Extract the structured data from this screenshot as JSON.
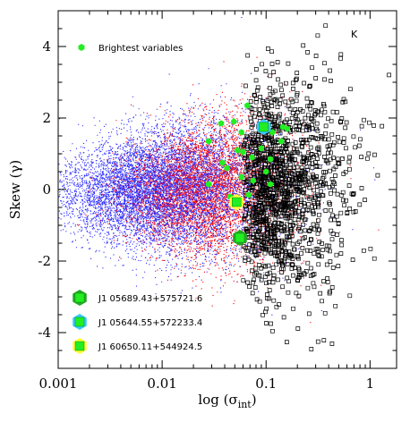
{
  "chart_data": {
    "type": "scatter",
    "panel_label": "K",
    "xlabel": "log (σ",
    "xlabel_sub": "int",
    "xlabel_close": ")",
    "ylabel": "Skew (γ)",
    "xscale": "log",
    "xlim": [
      0.001,
      1.8
    ],
    "ylim": [
      -5,
      5
    ],
    "x_ticks": [
      {
        "value": 0.001,
        "label": "0.001"
      },
      {
        "value": 0.01,
        "label": "0.01"
      },
      {
        "value": 0.1,
        "label": "0.1"
      },
      {
        "value": 1,
        "label": "1"
      }
    ],
    "y_ticks": [
      {
        "value": 4,
        "label": "4"
      },
      {
        "value": 2,
        "label": "2"
      },
      {
        "value": 0,
        "label": "0"
      },
      {
        "value": -2,
        "label": "-2"
      },
      {
        "value": -4,
        "label": "-4"
      }
    ],
    "legend": {
      "brightest_label": "Brightest variables"
    },
    "colors": {
      "blue_field": "#2a2aff",
      "red_field": "#ff0000",
      "black_squares": "#000000",
      "brightest": "#22ee22",
      "highlight_1_ring": "#22aa22",
      "highlight_2_ring": "#33ccff",
      "highlight_3_ring": "#ffff33"
    },
    "brightest_variables": [
      {
        "x": 0.066,
        "y": 2.35
      },
      {
        "x": 0.037,
        "y": 1.85
      },
      {
        "x": 0.049,
        "y": 1.9
      },
      {
        "x": 0.058,
        "y": 1.6
      },
      {
        "x": 0.115,
        "y": 1.6
      },
      {
        "x": 0.14,
        "y": 1.35
      },
      {
        "x": 0.16,
        "y": 1.7
      },
      {
        "x": 0.145,
        "y": 1.75
      },
      {
        "x": 0.028,
        "y": 1.35
      },
      {
        "x": 0.053,
        "y": 1.1
      },
      {
        "x": 0.06,
        "y": 1.05
      },
      {
        "x": 0.073,
        "y": 0.9
      },
      {
        "x": 0.09,
        "y": 1.15
      },
      {
        "x": 0.11,
        "y": 0.85
      },
      {
        "x": 0.038,
        "y": 0.75
      },
      {
        "x": 0.042,
        "y": 0.6
      },
      {
        "x": 0.1,
        "y": 0.5
      },
      {
        "x": 0.058,
        "y": 0.35
      },
      {
        "x": 0.075,
        "y": 0.25
      },
      {
        "x": 0.11,
        "y": 0.15
      },
      {
        "x": 0.028,
        "y": 0.15
      },
      {
        "x": 0.045,
        "y": -0.2
      },
      {
        "x": 0.068,
        "y": -0.15
      }
    ],
    "highlighted": [
      {
        "name": "J1 05689.43+575721.6",
        "x": 0.056,
        "y": -1.35,
        "ring": "highlight_1_ring"
      },
      {
        "name": "J1 05644.55+572233.4",
        "x": 0.095,
        "y": 1.75,
        "ring": "highlight_2_ring"
      },
      {
        "name": "J1 60650.11+544924.5",
        "x": 0.052,
        "y": -0.35,
        "ring": "highlight_3_ring"
      }
    ]
  }
}
